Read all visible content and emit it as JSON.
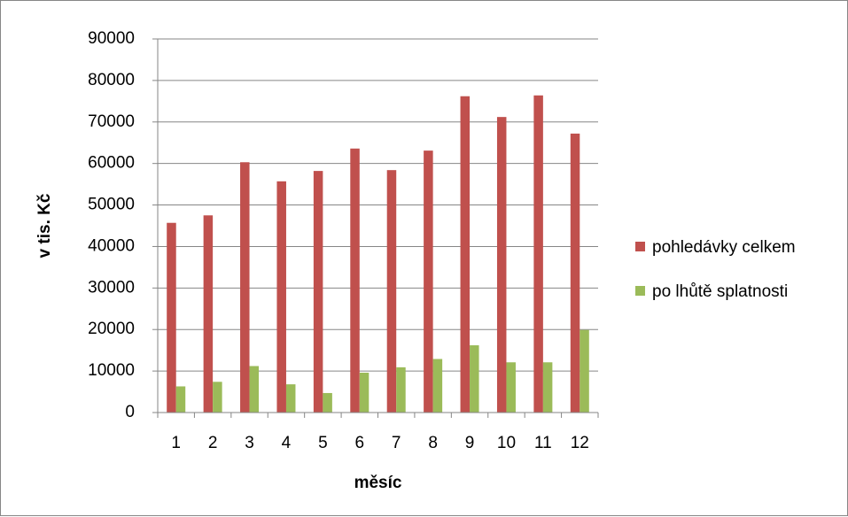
{
  "chart_data": {
    "type": "bar",
    "title": "",
    "xlabel": "měsíc",
    "ylabel": "v tis. Kč",
    "categories": [
      "1",
      "2",
      "3",
      "4",
      "5",
      "6",
      "7",
      "8",
      "9",
      "10",
      "11",
      "12"
    ],
    "series": [
      {
        "name": "pohledávky celkem",
        "color": "#c0504d",
        "values": [
          45700,
          47500,
          60300,
          55700,
          58200,
          63600,
          58400,
          63100,
          76200,
          71200,
          76400,
          67200
        ]
      },
      {
        "name": "po lhůtě splatnosti",
        "color": "#9bbb59",
        "values": [
          6300,
          7400,
          11200,
          6800,
          4700,
          9600,
          10900,
          12900,
          16200,
          12100,
          12100,
          19900
        ]
      }
    ],
    "ylim": [
      0,
      90000
    ],
    "yticks": [
      "0",
      "10000",
      "20000",
      "30000",
      "40000",
      "50000",
      "60000",
      "70000",
      "80000",
      "90000"
    ],
    "grid": true,
    "legend_position": "right"
  }
}
